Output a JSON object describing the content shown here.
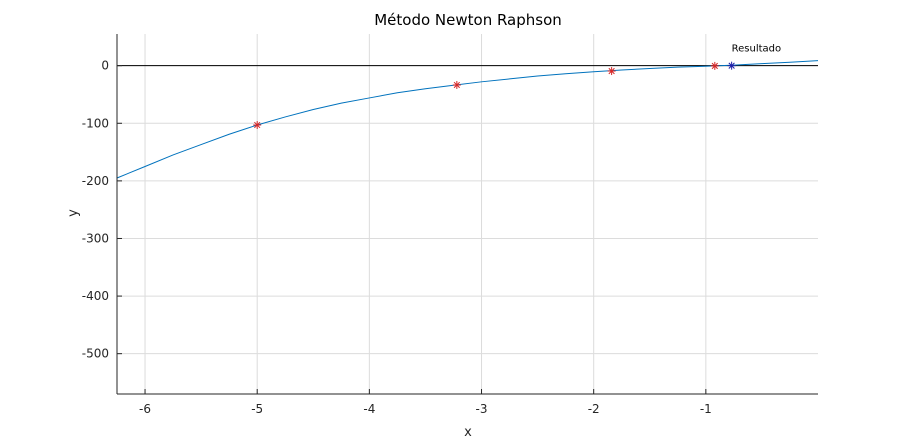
{
  "chart_data": {
    "type": "line",
    "title": "Método Newton Raphson",
    "xlabel": "x",
    "ylabel": "y",
    "xlim": [
      -6.25,
      0.0
    ],
    "ylim": [
      -570,
      55
    ],
    "x_ticks": [
      -6,
      -5,
      -4,
      -3,
      -2,
      -1
    ],
    "x_tick_labels": [
      "-6",
      "-5",
      "-4",
      "-3",
      "-2",
      "-1"
    ],
    "y_ticks": [
      0,
      -100,
      -200,
      -300,
      -400,
      -500
    ],
    "y_tick_labels": [
      "0",
      "-100",
      "-200",
      "-300",
      "-400",
      "-500"
    ],
    "grid": true,
    "reference_line_y": 0,
    "series": [
      {
        "type": "line",
        "color": "#0072bd",
        "x": [
          -6.25,
          -6.0,
          -5.75,
          -5.5,
          -5.25,
          -5.0,
          -4.75,
          -4.5,
          -4.25,
          -4.0,
          -3.75,
          -3.5,
          -3.25,
          -3.0,
          -2.75,
          -2.5,
          -2.25,
          -2.0,
          -1.75,
          -1.5,
          -1.25,
          -1.0,
          -0.75,
          -0.5,
          -0.25,
          0.0
        ],
        "y": [
          -195,
          -175,
          -155,
          -137,
          -119,
          -103,
          -89,
          -76,
          -65,
          -56,
          -47,
          -40,
          -34,
          -28,
          -23,
          -18,
          -14,
          -10.5,
          -7.5,
          -4.8,
          -2.6,
          -0.9,
          1.0,
          3.5,
          6.0,
          8.7
        ]
      },
      {
        "type": "scatter",
        "marker": "asterisk",
        "color": "#d62728",
        "x": [
          -5.0,
          -3.22,
          -1.84,
          -0.92
        ],
        "y": [
          -103,
          -33.5,
          -9.3,
          -0.4
        ]
      },
      {
        "type": "scatter",
        "marker": "asterisk",
        "color": "#1f1fa8",
        "x": [
          -0.77
        ],
        "y": [
          0
        ]
      }
    ],
    "annotations": [
      {
        "text": "Resultado",
        "x": -0.77,
        "y": 0
      }
    ]
  }
}
